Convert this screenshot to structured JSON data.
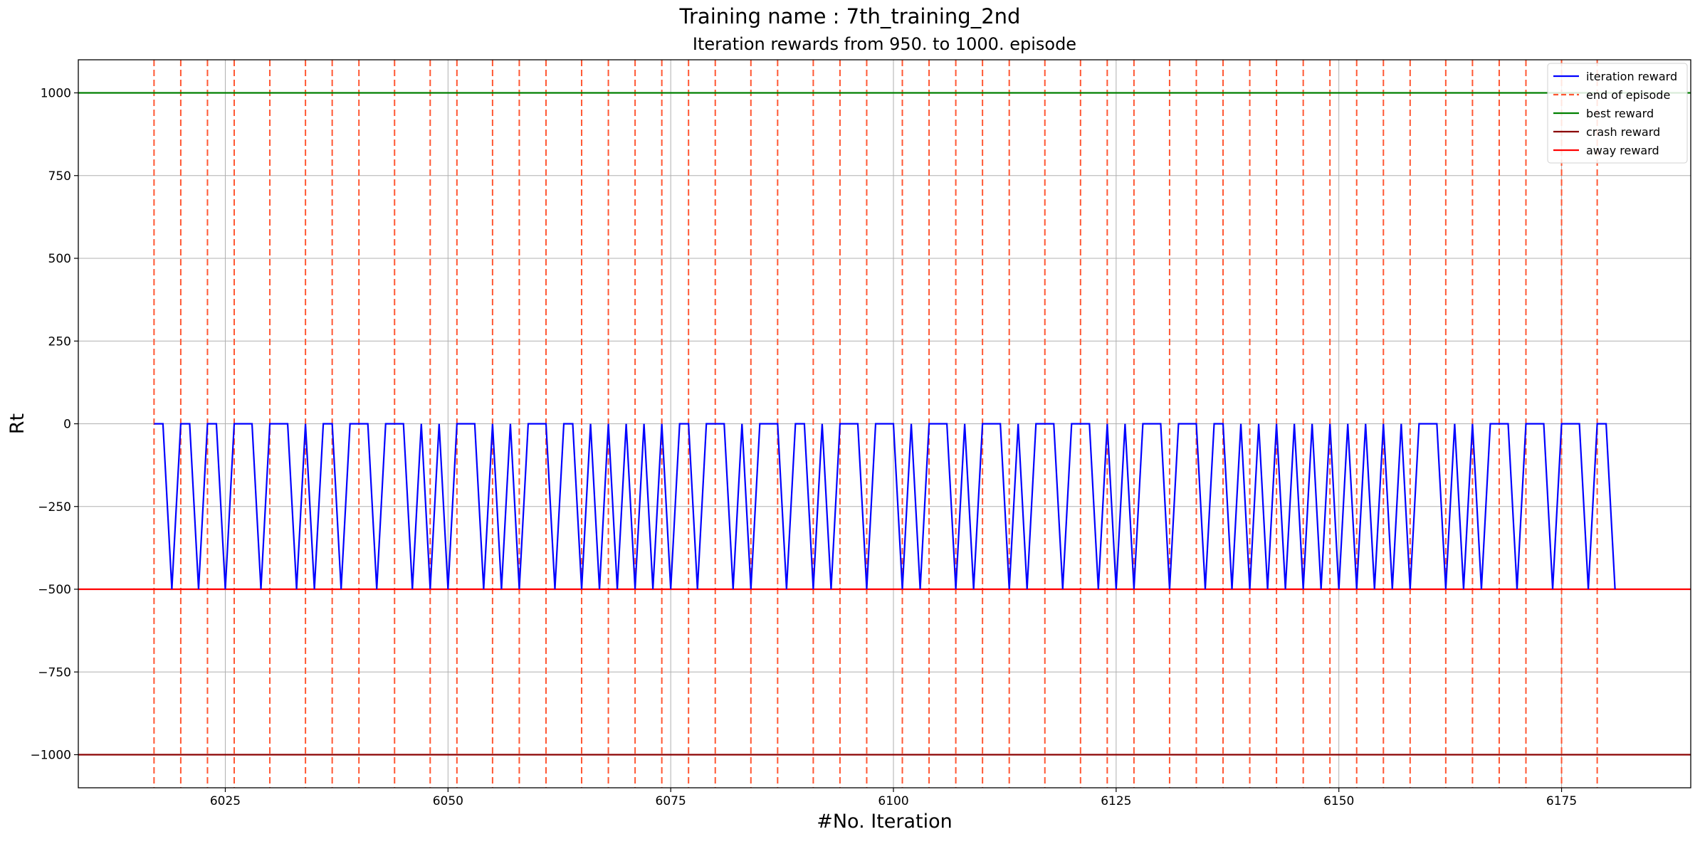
{
  "suptitle": "Training name : 7th_training_2nd",
  "chart_data": {
    "type": "line",
    "title": "Iteration rewards from 950. to 1000. episode",
    "xlabel": "#No. Iteration",
    "ylabel": "Rt",
    "xlim": [
      6008.5,
      6189.5
    ],
    "ylim": [
      -1100,
      1100
    ],
    "xticks": [
      6025,
      6050,
      6075,
      6100,
      6125,
      6150,
      6175
    ],
    "yticks": [
      -1000,
      -750,
      -500,
      -250,
      0,
      250,
      500,
      750,
      1000
    ],
    "ytick_labels": [
      "−1000",
      "−750",
      "−500",
      "−250",
      "0",
      "250",
      "500",
      "750",
      "1000"
    ],
    "grid": true,
    "legend_position": "top-right",
    "legend": [
      "iteration reward",
      "end of episode",
      "best reward",
      "crash reward",
      "away reward"
    ],
    "colors": {
      "iteration_reward": "#0000ff",
      "end_of_episode": "#ff5733",
      "best_reward": "#008000",
      "crash_reward": "#8b0000",
      "away_reward": "#ff0000",
      "grid": "#b0b0b0"
    },
    "episode_ends": [
      6017,
      6020,
      6023,
      6026,
      6030,
      6034,
      6037,
      6040,
      6044,
      6048,
      6051,
      6055,
      6058,
      6061,
      6065,
      6068,
      6071,
      6074,
      6077,
      6080,
      6084,
      6087,
      6091,
      6094,
      6097,
      6101,
      6104,
      6107,
      6110,
      6113,
      6117,
      6121,
      6124,
      6127,
      6131,
      6134,
      6137,
      6140,
      6143,
      6146,
      6149,
      6152,
      6155,
      6158,
      6162,
      6165,
      6168,
      6171,
      6175,
      6179
    ],
    "hlines": {
      "best_reward": 1000,
      "crash_reward": -1000,
      "away_reward": -500
    },
    "series": [
      {
        "name": "iteration reward",
        "x": [
          6017,
          6018,
          6019,
          6020,
          6021,
          6022,
          6023,
          6024,
          6025,
          6026,
          6027,
          6028,
          6029,
          6030,
          6031,
          6032,
          6033,
          6034,
          6035,
          6036,
          6037,
          6038,
          6039,
          6040,
          6041,
          6042,
          6043,
          6044,
          6045,
          6046,
          6047,
          6048,
          6049,
          6050,
          6051,
          6052,
          6053,
          6054,
          6055,
          6056,
          6057,
          6058,
          6059,
          6060,
          6061,
          6062,
          6063,
          6064,
          6065,
          6066,
          6067,
          6068,
          6069,
          6070,
          6071,
          6072,
          6073,
          6074,
          6075,
          6076,
          6077,
          6078,
          6079,
          6080,
          6081,
          6082,
          6083,
          6084,
          6085,
          6086,
          6087,
          6088,
          6089,
          6090,
          6091,
          6092,
          6093,
          6094,
          6095,
          6096,
          6097,
          6098,
          6099,
          6100,
          6101,
          6102,
          6103,
          6104,
          6105,
          6106,
          6107,
          6108,
          6109,
          6110,
          6111,
          6112,
          6113,
          6114,
          6115,
          6116,
          6117,
          6118,
          6119,
          6120,
          6121,
          6122,
          6123,
          6124,
          6125,
          6126,
          6127,
          6128,
          6129,
          6130,
          6131,
          6132,
          6133,
          6134,
          6135,
          6136,
          6137,
          6138,
          6139,
          6140,
          6141,
          6142,
          6143,
          6144,
          6145,
          6146,
          6147,
          6148,
          6149,
          6150,
          6151,
          6152,
          6153,
          6154,
          6155,
          6156,
          6157,
          6158,
          6159,
          6160,
          6161,
          6162,
          6163,
          6164,
          6165,
          6166,
          6167,
          6168,
          6169,
          6170,
          6171,
          6172,
          6173,
          6174,
          6175,
          6176,
          6177,
          6178,
          6179,
          6180,
          6181
        ],
        "y": [
          0,
          0,
          -500,
          0,
          0,
          -500,
          0,
          0,
          -500,
          0,
          0,
          0,
          -500,
          0,
          0,
          0,
          -500,
          0,
          -500,
          0,
          0,
          -500,
          0,
          0,
          0,
          -500,
          0,
          0,
          0,
          -500,
          0,
          -500,
          0,
          -500,
          0,
          0,
          0,
          -500,
          0,
          -500,
          0,
          -500,
          0,
          0,
          0,
          -500,
          0,
          0,
          -500,
          0,
          -500,
          0,
          -500,
          0,
          -500,
          0,
          -500,
          0,
          -500,
          0,
          0,
          -500,
          0,
          0,
          0,
          -500,
          0,
          -500,
          0,
          0,
          0,
          -500,
          0,
          0,
          -500,
          0,
          -500,
          0,
          0,
          0,
          -500,
          0,
          0,
          0,
          -500,
          0,
          -500,
          0,
          0,
          0,
          -500,
          0,
          -500,
          0,
          0,
          0,
          -500,
          0,
          -500,
          0,
          0,
          0,
          -500,
          0,
          0,
          0,
          -500,
          0,
          -500,
          0,
          -500,
          0,
          0,
          0,
          -500,
          0,
          0,
          0,
          -500,
          0,
          0,
          -500,
          0,
          -500,
          0,
          -500,
          0,
          -500,
          0,
          -500,
          0,
          -500,
          0,
          -500,
          0,
          -500,
          0,
          -500,
          0,
          -500,
          0,
          -500,
          0,
          0,
          0,
          -500,
          0,
          -500,
          0,
          -500,
          0,
          0,
          0,
          -500,
          0,
          0,
          0,
          -500,
          0,
          0,
          0,
          -500,
          0,
          0,
          -500
        ]
      }
    ]
  }
}
